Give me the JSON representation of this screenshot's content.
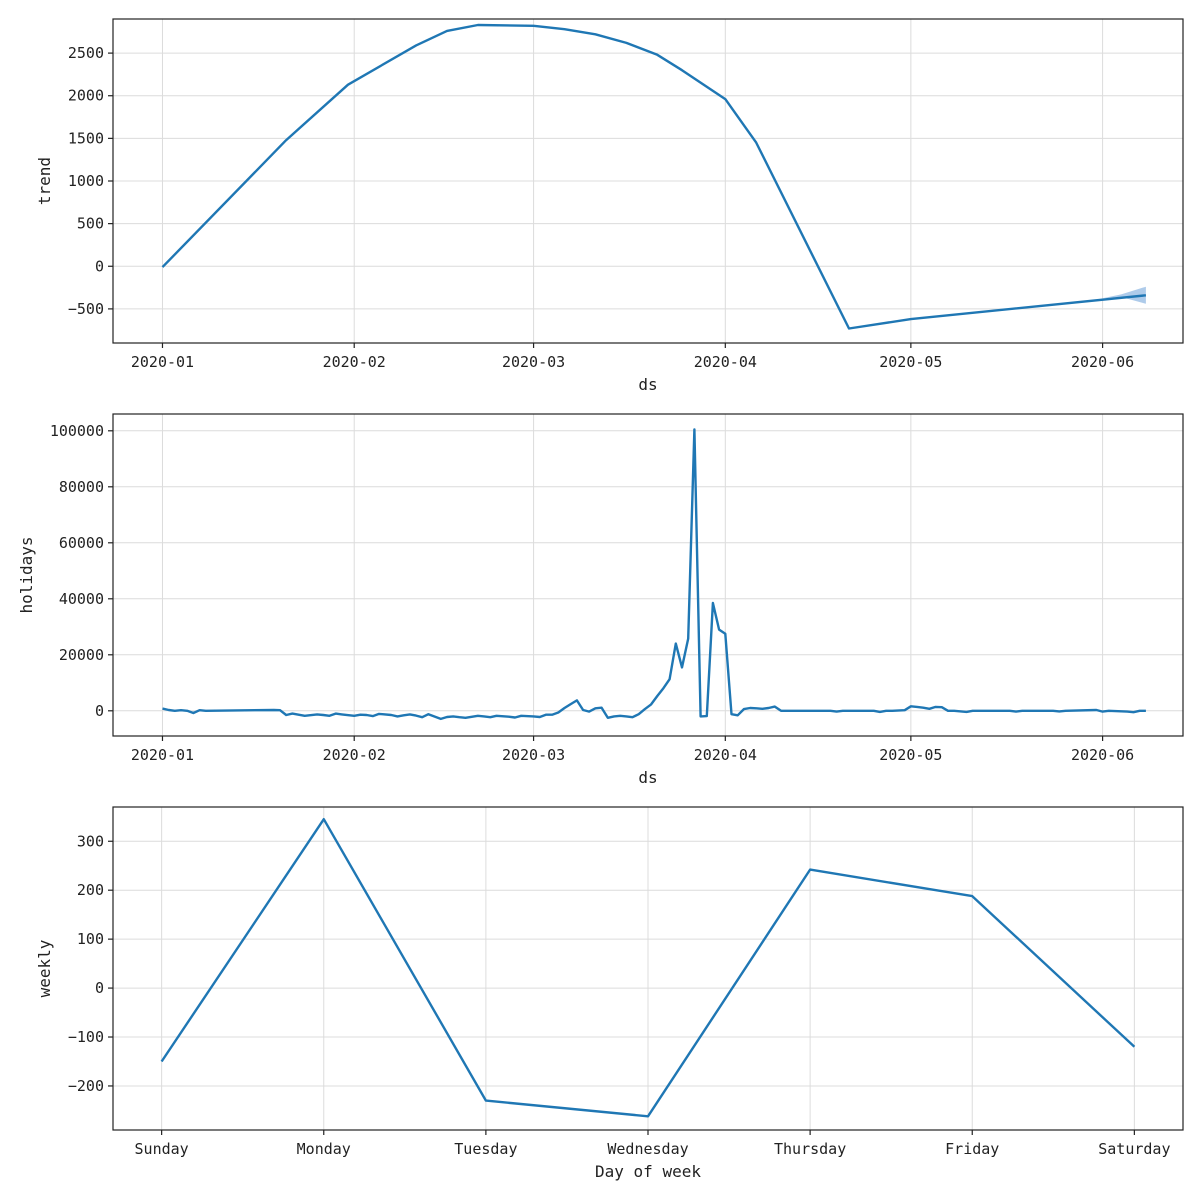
{
  "chart_data": [
    {
      "type": "line",
      "xlabel": "ds",
      "ylabel": "trend",
      "x_axis": "date",
      "xlim": [
        "2019-12-24",
        "2020-06-14"
      ],
      "ylim": [
        -900,
        2900
      ],
      "yticks": [
        -500,
        0,
        500,
        1000,
        1500,
        2000,
        2500
      ],
      "xticks": [
        "2020-01-01",
        "2020-02-01",
        "2020-03-01",
        "2020-04-01",
        "2020-05-01",
        "2020-06-01"
      ],
      "xtick_labels": [
        "2020-01",
        "2020-02",
        "2020-03",
        "2020-04",
        "2020-05",
        "2020-06"
      ],
      "grid": true,
      "series": [
        {
          "x": [
            "2020-01-01",
            "2020-01-21",
            "2020-01-31",
            "2020-02-11",
            "2020-02-16",
            "2020-02-21",
            "2020-03-01",
            "2020-03-06",
            "2020-03-11",
            "2020-03-16",
            "2020-03-21",
            "2020-03-25",
            "2020-04-01",
            "2020-04-06",
            "2020-04-21",
            "2020-05-01",
            "2020-06-08"
          ],
          "y": [
            -10,
            1480,
            2130,
            2590,
            2760,
            2830,
            2820,
            2780,
            2720,
            2620,
            2480,
            2300,
            1960,
            1450,
            -730,
            -620,
            -340
          ]
        }
      ],
      "uncertainty_band": {
        "x": [
          "2020-06-01",
          "2020-06-04",
          "2020-06-08"
        ],
        "upper": [
          -375,
          -330,
          -240
        ],
        "lower": [
          -375,
          -360,
          -440
        ]
      }
    },
    {
      "type": "line",
      "xlabel": "ds",
      "ylabel": "holidays",
      "x_axis": "date",
      "xlim": [
        "2019-12-24",
        "2020-06-14"
      ],
      "ylim": [
        -9000,
        106000
      ],
      "yticks": [
        0,
        20000,
        40000,
        60000,
        80000,
        100000
      ],
      "xticks": [
        "2020-01-01",
        "2020-02-01",
        "2020-03-01",
        "2020-04-01",
        "2020-05-01",
        "2020-06-01"
      ],
      "xtick_labels": [
        "2020-01",
        "2020-02",
        "2020-03",
        "2020-04",
        "2020-05",
        "2020-06"
      ],
      "grid": true,
      "series": [
        {
          "x": [
            "2020-01-01",
            "2020-01-02",
            "2020-01-03",
            "2020-01-04",
            "2020-01-05",
            "2020-01-06",
            "2020-01-07",
            "2020-01-08",
            "2020-01-19",
            "2020-01-20",
            "2020-01-21",
            "2020-01-22",
            "2020-01-24",
            "2020-01-26",
            "2020-01-27",
            "2020-01-28",
            "2020-01-29",
            "2020-01-30",
            "2020-02-01",
            "2020-02-02",
            "2020-02-03",
            "2020-02-04",
            "2020-02-05",
            "2020-02-07",
            "2020-02-08",
            "2020-02-09",
            "2020-02-10",
            "2020-02-11",
            "2020-02-12",
            "2020-02-13",
            "2020-02-15",
            "2020-02-16",
            "2020-02-17",
            "2020-02-18",
            "2020-02-19",
            "2020-02-21",
            "2020-02-22",
            "2020-02-23",
            "2020-02-24",
            "2020-02-26",
            "2020-02-27",
            "2020-02-28",
            "2020-03-01",
            "2020-03-02",
            "2020-03-03",
            "2020-03-04",
            "2020-03-05",
            "2020-03-06",
            "2020-03-07",
            "2020-03-08",
            "2020-03-09",
            "2020-03-10",
            "2020-03-11",
            "2020-03-12",
            "2020-03-13",
            "2020-03-14",
            "2020-03-15",
            "2020-03-16",
            "2020-03-17",
            "2020-03-18",
            "2020-03-19",
            "2020-03-20",
            "2020-03-21",
            "2020-03-22",
            "2020-03-23",
            "2020-03-24",
            "2020-03-25",
            "2020-03-26",
            "2020-03-27",
            "2020-03-28",
            "2020-03-29",
            "2020-03-30",
            "2020-03-31",
            "2020-04-01",
            "2020-04-02",
            "2020-04-03",
            "2020-04-04",
            "2020-04-05",
            "2020-04-06",
            "2020-04-07",
            "2020-04-08",
            "2020-04-09",
            "2020-04-10",
            "2020-04-18",
            "2020-04-19",
            "2020-04-20",
            "2020-04-25",
            "2020-04-26",
            "2020-04-27",
            "2020-04-28",
            "2020-04-30",
            "2020-05-01",
            "2020-05-02",
            "2020-05-03",
            "2020-05-04",
            "2020-05-05",
            "2020-05-06",
            "2020-05-07",
            "2020-05-08",
            "2020-05-10",
            "2020-05-11",
            "2020-05-17",
            "2020-05-18",
            "2020-05-19",
            "2020-05-24",
            "2020-05-25",
            "2020-05-26",
            "2020-05-31",
            "2020-06-01",
            "2020-06-02",
            "2020-06-05",
            "2020-06-06",
            "2020-06-07",
            "2020-06-08"
          ],
          "y": [
            800,
            300,
            0,
            200,
            0,
            -800,
            200,
            0,
            300,
            200,
            -1500,
            -1000,
            -1800,
            -1300,
            -1500,
            -1800,
            -1000,
            -1300,
            -1800,
            -1400,
            -1500,
            -1900,
            -1100,
            -1500,
            -2000,
            -1600,
            -1300,
            -1700,
            -2300,
            -1200,
            -2900,
            -2200,
            -2000,
            -2300,
            -2500,
            -1800,
            -2000,
            -2300,
            -1800,
            -2100,
            -2400,
            -1800,
            -2000,
            -2200,
            -1400,
            -1400,
            -600,
            1000,
            2400,
            3700,
            300,
            -300,
            900,
            1100,
            -2500,
            -2000,
            -1800,
            -2000,
            -2300,
            -1200,
            600,
            2300,
            5300,
            8100,
            11300,
            24000,
            15500,
            25800,
            100500,
            -2000,
            -1900,
            38500,
            29000,
            27500,
            -1200,
            -1600,
            600,
            1000,
            900,
            700,
            1000,
            1500,
            0,
            0,
            -300,
            0,
            0,
            -400,
            0,
            0,
            200,
            1600,
            1400,
            1100,
            700,
            1400,
            1300,
            0,
            0,
            -400,
            0,
            0,
            -300,
            0,
            0,
            -200,
            0,
            300,
            -300,
            0,
            -300,
            -500,
            0,
            0
          ]
        }
      ]
    },
    {
      "type": "line",
      "xlabel": "Day of week",
      "ylabel": "weekly",
      "categories": [
        "Sunday",
        "Monday",
        "Tuesday",
        "Wednesday",
        "Thursday",
        "Friday",
        "Saturday"
      ],
      "ylim": [
        -290,
        370
      ],
      "yticks": [
        -200,
        -100,
        0,
        100,
        200,
        300
      ],
      "grid": true,
      "series": [
        {
          "values": [
            -150,
            345,
            -230,
            -262,
            242,
            188,
            -120
          ]
        }
      ]
    }
  ],
  "colors": {
    "line": "#1f77b4",
    "band": "#aecbea"
  }
}
